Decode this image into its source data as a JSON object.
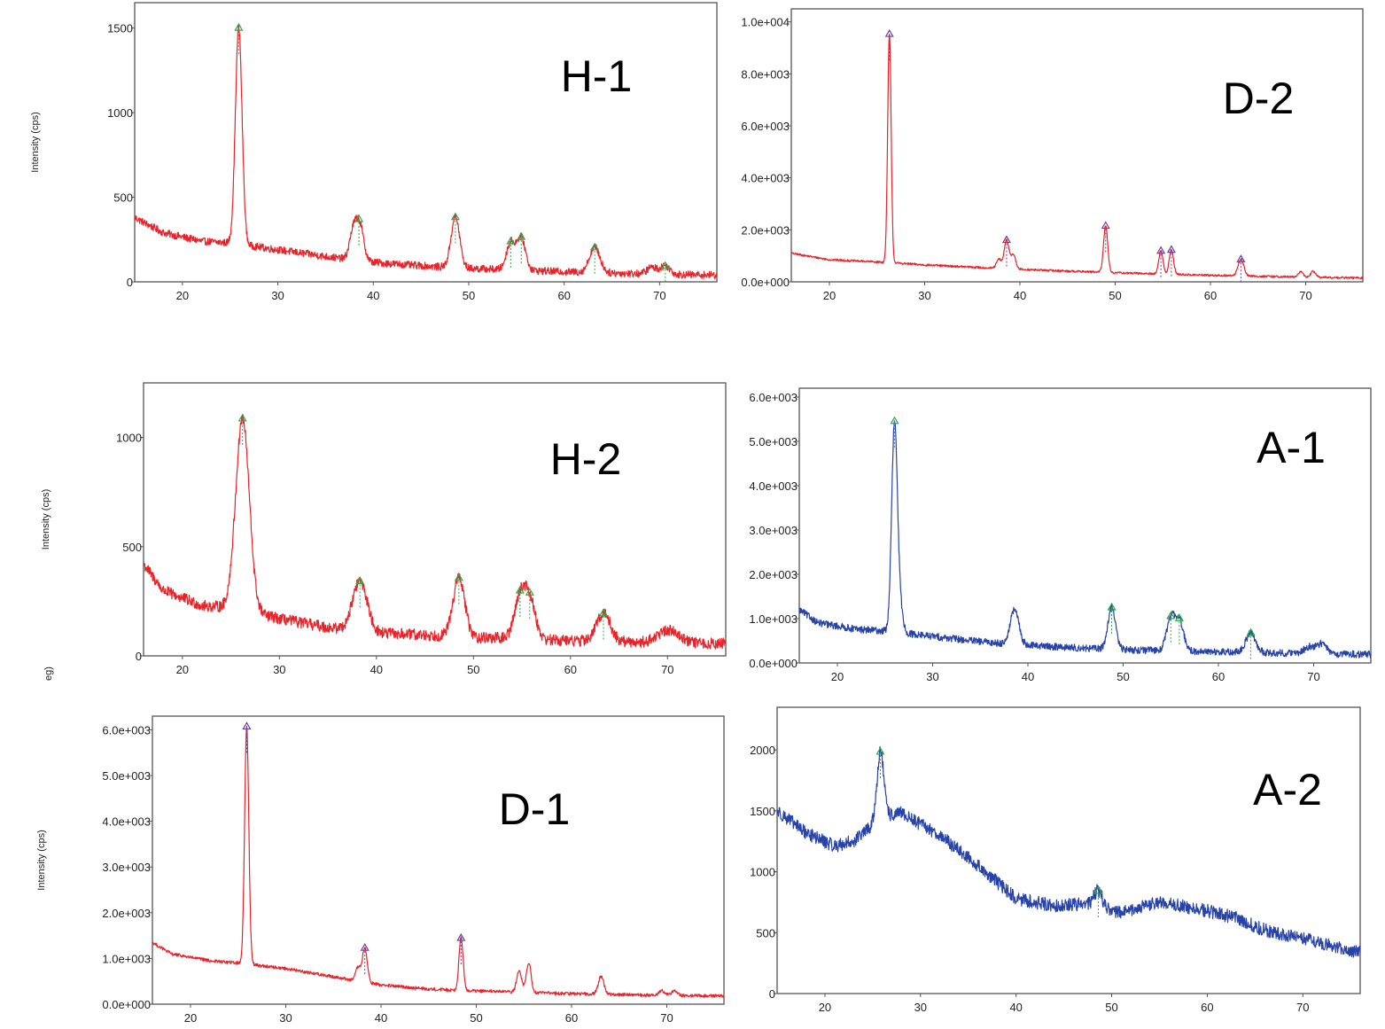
{
  "figure": {
    "stray_label": "eg)"
  },
  "colors": {
    "red_trace": "#e8232a",
    "blue_trace": "#2743a8",
    "marker_green": "#2fa84f",
    "marker_purple": "#6b3fa0"
  },
  "chart_data": [
    {
      "id": "H-1",
      "type": "line",
      "title": "H-1",
      "ylabel": "Intensity (cps)",
      "xlabel": "",
      "xlim": [
        15,
        76
      ],
      "ylim": [
        0,
        1650
      ],
      "xticks": [
        20,
        30,
        40,
        50,
        60,
        70
      ],
      "yticks": [
        0,
        500,
        1000,
        1500
      ],
      "ytick_labels": [
        "0",
        "500",
        "1000",
        "1500"
      ],
      "color": "red",
      "baseline": [
        [
          15,
          380
        ],
        [
          18,
          290
        ],
        [
          22,
          240
        ],
        [
          25,
          230
        ],
        [
          30,
          190
        ],
        [
          35,
          150
        ],
        [
          40,
          115
        ],
        [
          45,
          95
        ],
        [
          50,
          80
        ],
        [
          60,
          60
        ],
        [
          70,
          45
        ],
        [
          76,
          40
        ]
      ],
      "peaks": [
        [
          25.9,
          1280,
          0.35
        ],
        [
          37.8,
          120,
          0.35
        ],
        [
          38.5,
          230,
          0.45
        ],
        [
          48.6,
          300,
          0.45
        ],
        [
          54.4,
          160,
          0.45
        ],
        [
          55.5,
          190,
          0.45
        ],
        [
          63.2,
          150,
          0.55
        ],
        [
          69.2,
          40,
          0.5
        ],
        [
          70.6,
          50,
          0.5
        ]
      ],
      "noise": 22,
      "markers": [
        25.9,
        38.5,
        48.6,
        54.4,
        55.5,
        63.2,
        70.6
      ]
    },
    {
      "id": "D-2",
      "type": "line",
      "title": "D-2",
      "ylabel": "",
      "xlabel": "",
      "xlim": [
        16,
        76
      ],
      "ylim": [
        0,
        10500
      ],
      "xticks": [
        20,
        30,
        40,
        50,
        60,
        70
      ],
      "yticks": [
        0,
        2000,
        4000,
        6000,
        8000,
        10000
      ],
      "ytick_labels": [
        "0.0e+000",
        "2.0e+003",
        "4.0e+003",
        "6.0e+003",
        "8.0e+003",
        "1.0e+004"
      ],
      "color": "red",
      "baseline": [
        [
          16,
          1100
        ],
        [
          20,
          850
        ],
        [
          26,
          750
        ],
        [
          30,
          650
        ],
        [
          40,
          480
        ],
        [
          50,
          350
        ],
        [
          60,
          250
        ],
        [
          70,
          180
        ],
        [
          76,
          150
        ]
      ],
      "peaks": [
        [
          26.3,
          8800,
          0.18
        ],
        [
          37.8,
          350,
          0.25
        ],
        [
          38.6,
          1100,
          0.25
        ],
        [
          39.3,
          550,
          0.25
        ],
        [
          49.0,
          1800,
          0.22
        ],
        [
          54.8,
          900,
          0.22
        ],
        [
          55.9,
          950,
          0.22
        ],
        [
          63.2,
          650,
          0.3
        ],
        [
          69.5,
          200,
          0.25
        ],
        [
          70.8,
          230,
          0.25
        ]
      ],
      "noise": 40,
      "markers": [
        26.3,
        38.6,
        49.0,
        54.8,
        55.9,
        63.2
      ]
    },
    {
      "id": "H-2",
      "type": "line",
      "title": "H-2",
      "ylabel": "Intensity (cps)",
      "xlabel": "",
      "xlim": [
        16,
        76
      ],
      "ylim": [
        0,
        1250
      ],
      "xticks": [
        20,
        30,
        40,
        50,
        60,
        70
      ],
      "yticks": [
        0,
        500,
        1000
      ],
      "ytick_labels": [
        "0",
        "500",
        "1000"
      ],
      "color": "red",
      "baseline": [
        [
          16,
          420
        ],
        [
          18,
          300
        ],
        [
          22,
          230
        ],
        [
          25,
          220
        ],
        [
          30,
          170
        ],
        [
          35,
          130
        ],
        [
          40,
          105
        ],
        [
          45,
          95
        ],
        [
          50,
          85
        ],
        [
          60,
          70
        ],
        [
          70,
          60
        ],
        [
          76,
          55
        ]
      ],
      "peaks": [
        [
          26.2,
          880,
          0.7
        ],
        [
          38.3,
          230,
          0.75
        ],
        [
          48.5,
          270,
          0.6
        ],
        [
          54.8,
          180,
          0.6
        ],
        [
          55.8,
          170,
          0.6
        ],
        [
          63.4,
          130,
          0.7
        ],
        [
          69.5,
          40,
          0.8
        ],
        [
          70.8,
          40,
          0.8
        ]
      ],
      "noise": 26,
      "markers": [
        26.2,
        38.3,
        48.5,
        54.8,
        55.8,
        63.4
      ]
    },
    {
      "id": "A-1",
      "type": "line",
      "title": "A-1",
      "ylabel": "",
      "xlabel": "",
      "xlim": [
        16,
        76
      ],
      "ylim": [
        0,
        6200
      ],
      "xticks": [
        20,
        30,
        40,
        50,
        60,
        70
      ],
      "yticks": [
        0,
        1000,
        2000,
        3000,
        4000,
        5000,
        6000
      ],
      "ytick_labels": [
        "0.0e+000",
        "1.0e+003",
        "2.0e+003",
        "3.0e+003",
        "4.0e+003",
        "5.0e+003",
        "6.0e+003"
      ],
      "color": "blue",
      "baseline": [
        [
          16,
          1200
        ],
        [
          18,
          900
        ],
        [
          22,
          760
        ],
        [
          25,
          720
        ],
        [
          30,
          600
        ],
        [
          35,
          480
        ],
        [
          40,
          400
        ],
        [
          45,
          340
        ],
        [
          50,
          300
        ],
        [
          60,
          250
        ],
        [
          70,
          210
        ],
        [
          76,
          190
        ]
      ],
      "peaks": [
        [
          26.0,
          4700,
          0.3
        ],
        [
          26.6,
          500,
          0.3
        ],
        [
          38.6,
          780,
          0.45
        ],
        [
          48.8,
          950,
          0.4
        ],
        [
          55.0,
          700,
          0.45
        ],
        [
          55.9,
          650,
          0.45
        ],
        [
          63.4,
          450,
          0.5
        ],
        [
          69.5,
          150,
          0.5
        ],
        [
          70.8,
          230,
          0.5
        ]
      ],
      "noise": 80,
      "markers": [
        26.0,
        48.8,
        55.0,
        55.9,
        63.4
      ]
    },
    {
      "id": "D-1",
      "type": "line",
      "title": "D-1",
      "ylabel": "Intensity (cps)",
      "xlabel": "",
      "xlim": [
        16,
        76
      ],
      "ylim": [
        0,
        6300
      ],
      "xticks": [
        20,
        30,
        40,
        50,
        60,
        70
      ],
      "yticks": [
        0,
        1000,
        2000,
        3000,
        4000,
        5000,
        6000
      ],
      "ytick_labels": [
        "0.0e+000",
        "1.0e+003",
        "2.0e+003",
        "3.0e+003",
        "4.0e+003",
        "5.0e+003",
        "6.0e+003"
      ],
      "color": "red",
      "baseline": [
        [
          16,
          1350
        ],
        [
          18,
          1100
        ],
        [
          22,
          950
        ],
        [
          25,
          900
        ],
        [
          30,
          780
        ],
        [
          35,
          600
        ],
        [
          40,
          420
        ],
        [
          45,
          330
        ],
        [
          50,
          290
        ],
        [
          60,
          230
        ],
        [
          70,
          190
        ],
        [
          76,
          180
        ]
      ],
      "peaks": [
        [
          25.9,
          5200,
          0.22
        ],
        [
          37.6,
          300,
          0.25
        ],
        [
          38.3,
          750,
          0.25
        ],
        [
          48.4,
          1150,
          0.22
        ],
        [
          54.5,
          500,
          0.25
        ],
        [
          55.5,
          650,
          0.25
        ],
        [
          63.1,
          380,
          0.3
        ],
        [
          69.5,
          100,
          0.3
        ],
        [
          70.8,
          110,
          0.3
        ]
      ],
      "noise": 35,
      "markers": [
        25.9,
        38.3,
        48.4
      ]
    },
    {
      "id": "A-2",
      "type": "line",
      "title": "A-2",
      "ylabel": "",
      "xlabel": "",
      "xlim": [
        15,
        76
      ],
      "ylim": [
        0,
        2350
      ],
      "xticks": [
        20,
        30,
        40,
        50,
        60,
        70
      ],
      "yticks": [
        0,
        500,
        1000,
        1500,
        2000
      ],
      "ytick_labels": [
        "0",
        "500",
        "1000",
        "1500",
        "2000"
      ],
      "color": "blue",
      "baseline": [
        [
          15,
          1500
        ],
        [
          18,
          1320
        ],
        [
          21,
          1210
        ],
        [
          23,
          1250
        ],
        [
          26,
          1450
        ],
        [
          28,
          1480
        ],
        [
          32,
          1300
        ],
        [
          36,
          1050
        ],
        [
          40,
          780
        ],
        [
          44,
          720
        ],
        [
          48,
          740
        ],
        [
          51,
          660
        ],
        [
          55,
          750
        ],
        [
          60,
          680
        ],
        [
          63,
          620
        ],
        [
          66,
          520
        ],
        [
          70,
          450
        ],
        [
          74,
          370
        ],
        [
          76,
          340
        ]
      ],
      "peaks": [
        [
          25.8,
          550,
          0.35
        ],
        [
          48.6,
          120,
          0.4
        ]
      ],
      "noise": 55,
      "markers": [
        25.8,
        48.6
      ]
    }
  ]
}
